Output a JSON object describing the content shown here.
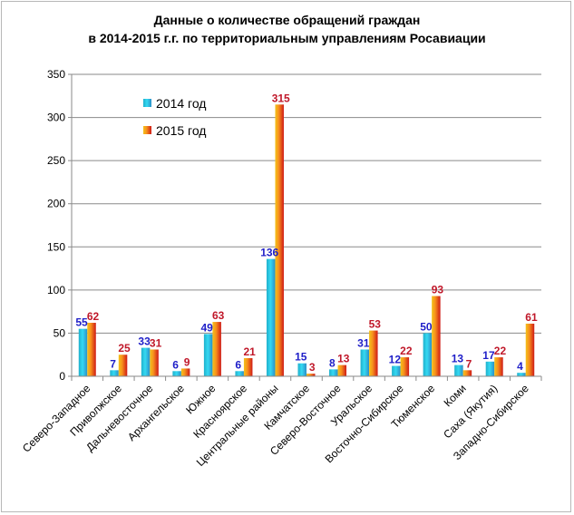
{
  "chart_data": {
    "type": "bar",
    "title_line1": "Данные о количестве обращений граждан",
    "title_line2": "в 2014-2015 г.г. по территориальным управлениям Росавиации",
    "categories": [
      "Северо-Западное",
      "Приволжское",
      "Дальневосточное",
      "Архангельское",
      "Южное",
      "Красноярское",
      "Центральные районы",
      "Камчатское",
      "Северо-Восточное",
      "Уральское",
      "Восточно-Сибирское",
      "Тюменское",
      "Коми",
      "Саха (Якутия)",
      "Западно-Сибирское"
    ],
    "series": [
      {
        "name": "2014 год",
        "values": [
          55,
          7,
          33,
          6,
          49,
          6,
          136,
          15,
          8,
          31,
          12,
          50,
          13,
          17,
          4
        ],
        "label_color": "#1f1fc8"
      },
      {
        "name": "2015 год",
        "values": [
          62,
          25,
          31,
          9,
          63,
          21,
          315,
          3,
          13,
          53,
          22,
          93,
          7,
          22,
          61
        ],
        "label_color": "#c0182a"
      }
    ],
    "ylim": [
      0,
      350
    ],
    "yticks": [
      0,
      50,
      100,
      150,
      200,
      250,
      300,
      350
    ],
    "xlabel": "",
    "ylabel": "",
    "legend_position": "top-left",
    "grid": true
  }
}
